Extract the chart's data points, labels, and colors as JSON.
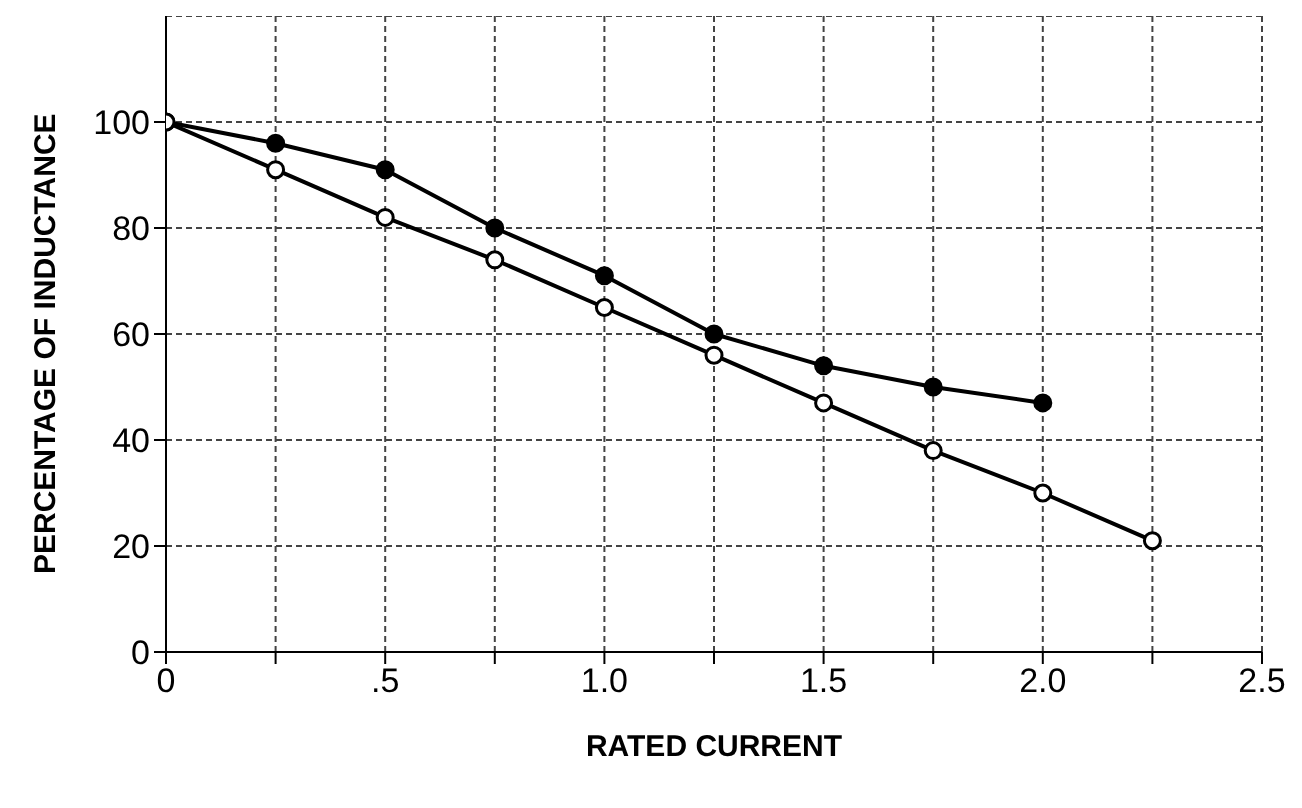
{
  "chart_data": {
    "type": "line",
    "xlabel": "RATED CURRENT",
    "ylabel": "PERCENTAGE OF INDUCTANCE",
    "series": [
      {
        "color": "#000000",
        "x": [
          0,
          0.25,
          0.5,
          0.75,
          1.0,
          1.25,
          1.5,
          1.75,
          2.0
        ],
        "values": [
          100,
          96,
          91,
          80,
          71,
          60,
          54,
          50,
          47
        ]
      },
      {
        "color": "#000000",
        "x": [
          0,
          0.25,
          0.5,
          0.75,
          1.0,
          1.25,
          1.5,
          1.75,
          2.0,
          2.25
        ],
        "values": [
          100,
          91,
          82,
          74,
          65,
          56,
          47,
          38,
          30,
          21
        ]
      }
    ],
    "xlim": [
      0,
      2.5
    ],
    "xticks": [
      0,
      {
        "value": 0.25,
        "label": null
      },
      {
        "value": 0.5,
        "label": ".5"
      },
      {
        "value": 0.75,
        "label": null
      },
      {
        "value": 1.0,
        "label": "1.0"
      },
      {
        "value": 1.25,
        "label": null
      },
      {
        "value": 1.5,
        "label": "1.5"
      },
      {
        "value": 1.75,
        "label": null
      },
      {
        "value": 2.0,
        "label": "2.0"
      },
      {
        "value": 2.25,
        "label": null
      },
      {
        "value": 2.5,
        "label": "2.5"
      }
    ],
    "ylim": [
      0,
      120
    ],
    "yticks": [
      0,
      20,
      40,
      60,
      80,
      100
    ],
    "grid": true,
    "marker": "circle"
  }
}
